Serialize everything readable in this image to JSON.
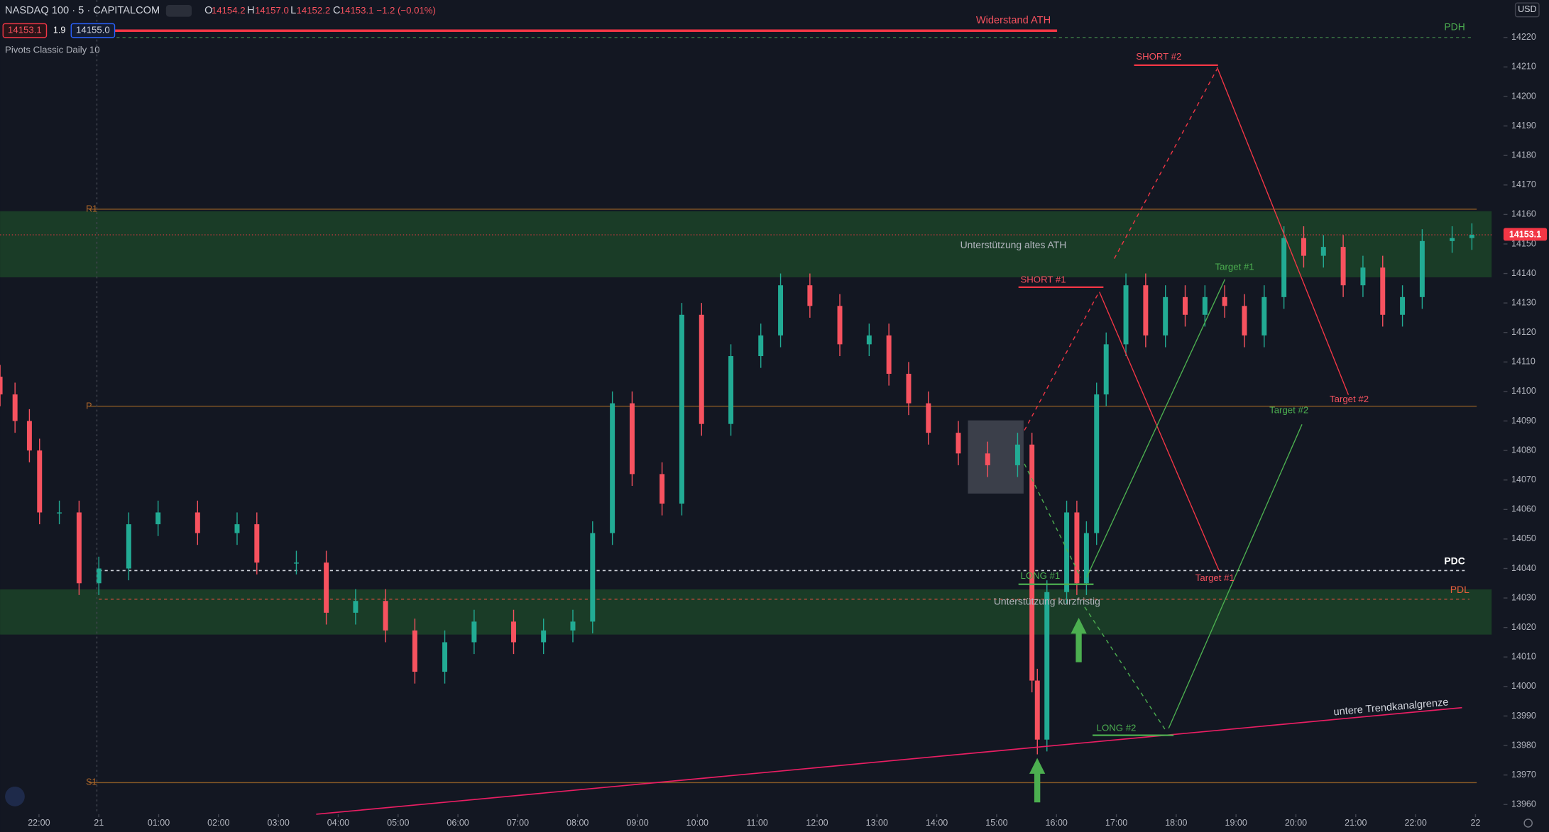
{
  "header": {
    "symbol": "NASDAQ 100 · 5 · CAPITALCOM",
    "open_label": "O",
    "open": "14154.2",
    "high_label": "H",
    "high": "14157.0",
    "low_label": "L",
    "low": "14152.2",
    "close_label": "C",
    "close": "14153.1",
    "change": "−1.2 (−0.01%)",
    "bid": "14153.1",
    "spread": "1.9",
    "ask": "14155.0",
    "indicator": "Pivots Classic Daily 10",
    "currency": "USD"
  },
  "chart_data": {
    "type": "candlestick",
    "up_color": "#22ab94",
    "down_color": "#f7525f",
    "x": [
      -1.65,
      -1.4,
      -1.16,
      -0.99,
      -0.66,
      -0.33,
      0,
      0.5,
      0.99,
      1.65,
      2.31,
      2.64,
      3.3,
      3.8,
      4.29,
      4.79,
      5.28,
      5.78,
      6.27,
      6.93,
      7.43,
      7.92,
      8.25,
      8.58,
      8.91,
      9.41,
      9.74,
      10.07,
      10.56,
      11.06,
      11.39,
      11.88,
      12.38,
      12.87,
      13.2,
      13.53,
      13.86,
      14.36,
      14.85,
      15.35,
      15.59,
      15.68,
      15.84,
      16.17,
      16.34,
      16.5,
      16.67,
      16.83,
      17.16,
      17.49,
      17.82,
      18.15,
      18.48,
      18.81,
      19.14,
      19.47,
      19.8,
      20.13,
      20.46,
      20.79,
      21.12,
      21.45,
      21.78,
      22.11,
      22.61,
      22.94
    ],
    "open": [
      14105,
      14099,
      14090,
      14080,
      14059,
      14059,
      14035,
      14040,
      14055,
      14059,
      14052,
      14055,
      14042,
      14042,
      14025,
      14029,
      14019,
      14005,
      14015,
      14022,
      14015,
      14019,
      14022,
      14052,
      14096,
      14072,
      14062,
      14126,
      14089,
      14112,
      14119,
      14136,
      14129,
      14116,
      14119,
      14106,
      14096,
      14086,
      14079,
      14075,
      14082,
      14002,
      13982,
      14032,
      14059,
      14035,
      14052,
      14099,
      14116,
      14136,
      14119,
      14132,
      14126,
      14132,
      14129,
      14119,
      14132,
      14152,
      14146,
      14149,
      14136,
      14142,
      14126,
      14132,
      14151,
      14152
    ],
    "high": [
      14109,
      14103,
      14094,
      14084,
      14063,
      14063,
      14044,
      14059,
      14063,
      14063,
      14059,
      14059,
      14046,
      14046,
      14033,
      14033,
      14023,
      14019,
      14026,
      14026,
      14023,
      14026,
      14056,
      14100,
      14100,
      14076,
      14130,
      14130,
      14116,
      14123,
      14140,
      14140,
      14133,
      14123,
      14123,
      14110,
      14100,
      14090,
      14083,
      14086,
      14086,
      14006,
      14036,
      14063,
      14063,
      14056,
      14103,
      14120,
      14140,
      14140,
      14136,
      14136,
      14136,
      14136,
      14133,
      14136,
      14156,
      14156,
      14153,
      14153,
      14146,
      14146,
      14136,
      14155,
      14156,
      14157
    ],
    "low": [
      14095,
      14086,
      14076,
      14055,
      14055,
      14031,
      14031,
      14036,
      14051,
      14048,
      14048,
      14038,
      14038,
      14021,
      14021,
      14015,
      14001,
      14001,
      14011,
      14011,
      14011,
      14015,
      14018,
      14048,
      14068,
      14058,
      14058,
      14085,
      14085,
      14108,
      14115,
      14125,
      14112,
      14112,
      14102,
      14092,
      14082,
      14075,
      14071,
      14071,
      13998,
      13977,
      13978,
      14028,
      14031,
      14031,
      14048,
      14095,
      14112,
      14115,
      14115,
      14122,
      14122,
      14125,
      14115,
      14115,
      14128,
      14142,
      14142,
      14132,
      14132,
      14122,
      14122,
      14128,
      14147,
      14148
    ],
    "close": [
      14099,
      14090,
      14080,
      14059,
      14059,
      14035,
      14040,
      14055,
      14059,
      14052,
      14055,
      14042,
      14042,
      14025,
      14029,
      14019,
      14005,
      14015,
      14022,
      14015,
      14019,
      14022,
      14052,
      14096,
      14072,
      14062,
      14126,
      14089,
      14112,
      14119,
      14136,
      14129,
      14116,
      14119,
      14106,
      14096,
      14086,
      14079,
      14075,
      14082,
      14002,
      13982,
      14032,
      14059,
      14035,
      14052,
      14099,
      14116,
      14136,
      14119,
      14132,
      14126,
      14132,
      14129,
      14119,
      14132,
      14152,
      14146,
      14149,
      14136,
      14142,
      14126,
      14132,
      14151,
      14152,
      14153.1
    ],
    "xlim": [
      -1.65,
      23.27
    ],
    "ylim": [
      13956.7,
      14232.7
    ],
    "yticks": [
      13960,
      13970,
      13980,
      13990,
      14000,
      14010,
      14020,
      14030,
      14040,
      14050,
      14060,
      14070,
      14080,
      14090,
      14100,
      14110,
      14120,
      14130,
      14140,
      14150,
      14160,
      14170,
      14180,
      14190,
      14200,
      14210,
      14220
    ],
    "xticks": [
      {
        "value": -1,
        "label": "22:00"
      },
      {
        "value": 0,
        "label": "21"
      },
      {
        "value": 1,
        "label": "01:00"
      },
      {
        "value": 2,
        "label": "02:00"
      },
      {
        "value": 3,
        "label": "03:00"
      },
      {
        "value": 4,
        "label": "04:00"
      },
      {
        "value": 5,
        "label": "05:00"
      },
      {
        "value": 6,
        "label": "06:00"
      },
      {
        "value": 7,
        "label": "07:00"
      },
      {
        "value": 8,
        "label": "08:00"
      },
      {
        "value": 9,
        "label": "09:00"
      },
      {
        "value": 10,
        "label": "10:00"
      },
      {
        "value": 11,
        "label": "11:00"
      },
      {
        "value": 12,
        "label": "12:00"
      },
      {
        "value": 13,
        "label": "13:00"
      },
      {
        "value": 14,
        "label": "14:00"
      },
      {
        "value": 15,
        "label": "15:00"
      },
      {
        "value": 16,
        "label": "16:00"
      },
      {
        "value": 17,
        "label": "17:00"
      },
      {
        "value": 18,
        "label": "18:00"
      },
      {
        "value": 19,
        "label": "19:00"
      },
      {
        "value": 20,
        "label": "20:00"
      },
      {
        "value": 21,
        "label": "21:00"
      },
      {
        "value": 22,
        "label": "22:00"
      },
      {
        "value": 23,
        "label": "22"
      }
    ],
    "zones": [
      {
        "name": "Unterstützung altes ATH",
        "values": [
          14161.1,
          14138.7
        ],
        "color": "#1e4a2a"
      },
      {
        "name": "Unterstützung kurzfristig",
        "values": [
          14032.9,
          14017.6
        ],
        "color": "#1e4a2a"
      }
    ],
    "box": {
      "x": [
        14.52,
        15.45
      ],
      "values": [
        14090.2,
        14065.4
      ],
      "color": "#5d606b"
    },
    "levels": [
      {
        "name": "Widerstand ATH",
        "value": 14222.3,
        "x": [
          0.25,
          16.01
        ],
        "color": "#f23645",
        "dash": false,
        "width": 2.5
      },
      {
        "name": "PDH",
        "value": 14220,
        "x": [
          0,
          22.94
        ],
        "color": "#3d7a45",
        "dash": true,
        "width": 1
      },
      {
        "name": "R1",
        "value": 14161.8,
        "x": [
          -0.17,
          23.02
        ],
        "color": "#8a5a26",
        "dash": false,
        "width": 1
      },
      {
        "name": "P",
        "value": 14095,
        "x": [
          -0.17,
          23.02
        ],
        "color": "#8a5a26",
        "dash": false,
        "width": 1
      },
      {
        "name": "S1",
        "value": 13967.4,
        "x": [
          -0.17,
          23.02
        ],
        "color": "#8a5a26",
        "dash": false,
        "width": 1
      },
      {
        "name": "PDC",
        "value": 14039.3,
        "x": [
          0,
          22.82
        ],
        "color": "#d1d4dc",
        "dash": true,
        "width": 1.2
      },
      {
        "name": "PDL",
        "value": 14029.6,
        "x": [
          0,
          22.9
        ],
        "color": "#b54a3a",
        "dash": true,
        "width": 1
      }
    ],
    "annotations": {
      "short2": "SHORT #2",
      "short1": "SHORT #1",
      "long1": "LONG #1",
      "long2": "LONG #2",
      "target1_green": "Target #1",
      "target2_green": "Target #2",
      "target1_red": "Target #1",
      "target2_red": "Target #2",
      "trend": "untere Trendkanalgrenze"
    }
  }
}
